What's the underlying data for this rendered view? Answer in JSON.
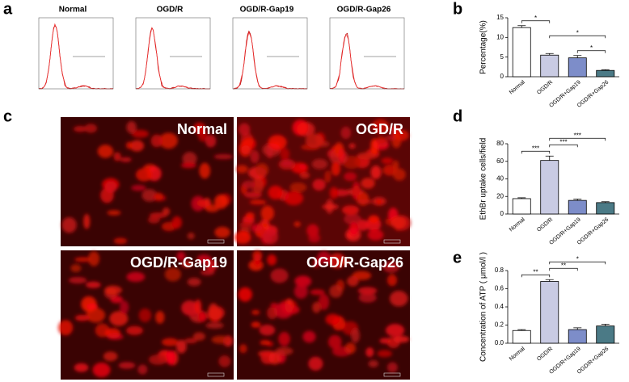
{
  "panels": {
    "a": {
      "label": "a",
      "titles": [
        "Normal",
        "OGD/R",
        "OGD/R-Gap19",
        "OGD/R-Gap26"
      ]
    },
    "c": {
      "label": "c",
      "titles": [
        "Normal",
        "OGD/R",
        "OGD/R-Gap19",
        "OGD/R-Gap26"
      ]
    }
  },
  "chart_data": [
    {
      "type": "bar",
      "panel": "b",
      "ylabel": "Percentage(%)",
      "categories": [
        "Normal",
        "OGD/R",
        "OGD/R+Gap19",
        "OGD/R+Gap26"
      ],
      "values": [
        12.5,
        5.5,
        4.8,
        1.6
      ],
      "errors": [
        0.5,
        0.4,
        0.6,
        0.2
      ],
      "colors": [
        "#ffffff",
        "#c9cbe3",
        "#7d8dc9",
        "#4b7a86"
      ],
      "ylim": [
        0,
        15
      ],
      "yticks": [
        0,
        5,
        10,
        15
      ],
      "significance": [
        {
          "label": "*",
          "between": [
            0,
            1
          ]
        },
        {
          "label": "*",
          "between": [
            2,
            3
          ]
        },
        {
          "label": "*",
          "between": [
            1,
            3
          ]
        }
      ]
    },
    {
      "type": "bar",
      "panel": "d",
      "ylabel": "EthBr uptake cells/field",
      "categories": [
        "Normal",
        "OGD/R",
        "OGD/R+Gap19",
        "OGD/R+Gap26"
      ],
      "values": [
        17.5,
        61,
        15.5,
        13
      ],
      "errors": [
        1,
        5,
        1.5,
        1
      ],
      "colors": [
        "#ffffff",
        "#c9cbe3",
        "#7d8dc9",
        "#4b7a86"
      ],
      "ylim": [
        0,
        80
      ],
      "yticks": [
        0,
        20,
        40,
        60,
        80
      ],
      "significance": [
        {
          "label": "***",
          "between": [
            0,
            1
          ]
        },
        {
          "label": "***",
          "between": [
            1,
            2
          ]
        },
        {
          "label": "***",
          "between": [
            1,
            3
          ]
        }
      ]
    },
    {
      "type": "bar",
      "panel": "e",
      "ylabel": "Concentration of ATP ( μmol/l )",
      "categories": [
        "Normal",
        "OGD/R",
        "OGD/R+Gap19",
        "OGD/R+Gap26"
      ],
      "values": [
        0.14,
        0.68,
        0.15,
        0.19
      ],
      "errors": [
        0.01,
        0.02,
        0.02,
        0.02
      ],
      "colors": [
        "#ffffff",
        "#c9cbe3",
        "#7d8dc9",
        "#4b7a86"
      ],
      "ylim": [
        0,
        0.8
      ],
      "yticks": [
        {
          "value": 0,
          "label": "0.0"
        },
        0.2,
        0.4,
        0.6,
        0.8
      ],
      "significance": [
        {
          "label": "**",
          "between": [
            0,
            1
          ]
        },
        {
          "label": "**",
          "between": [
            1,
            2
          ]
        },
        {
          "label": "*",
          "between": [
            1,
            3
          ]
        }
      ]
    }
  ]
}
